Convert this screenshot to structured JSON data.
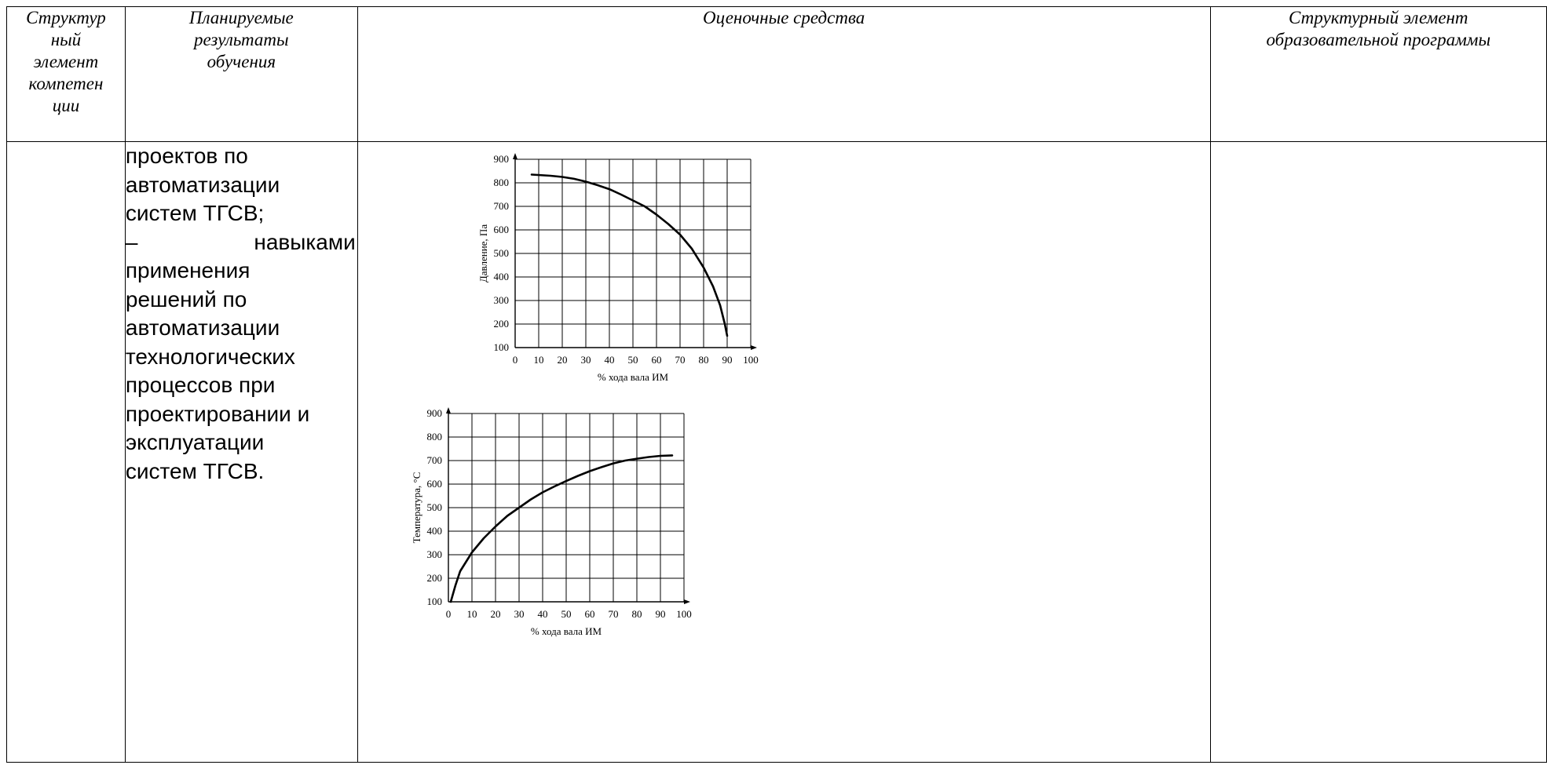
{
  "header": {
    "col1": [
      "Структур",
      "ный",
      "элемент",
      "компетен",
      "ции"
    ],
    "col2": [
      "Планируемые",
      "результаты",
      "обучения"
    ],
    "col3": "Оценочные средства",
    "col4": [
      "Структурный элемент",
      "образовательной программы"
    ]
  },
  "results_lines": [
    "проектов по",
    "автоматизации",
    "систем ТГСВ;",
    "–|навыками",
    "применения",
    "решений по",
    "автоматизации",
    "технологических",
    "процессов при",
    "проектировании и",
    "эксплуатации",
    "систем ТГСВ."
  ],
  "chart_data": [
    {
      "type": "line",
      "title": "",
      "xlabel": "% хода вала ИМ",
      "ylabel": "Давление, Па",
      "xlim": [
        0,
        100
      ],
      "ylim": [
        100,
        900
      ],
      "x_ticks": [
        "0",
        "10",
        "20",
        "30",
        "40",
        "50",
        "60",
        "70",
        "80",
        "90",
        "100"
      ],
      "y_ticks": [
        "100",
        "200",
        "300",
        "400",
        "500",
        "600",
        "700",
        "800",
        "900"
      ],
      "grid": true,
      "series": [
        {
          "x": [
            7,
            15,
            20,
            25,
            30,
            35,
            40,
            45,
            50,
            55,
            60,
            65,
            70,
            75,
            80,
            84,
            87,
            89,
            90
          ],
          "y": [
            835,
            830,
            825,
            817,
            805,
            790,
            773,
            750,
            725,
            700,
            665,
            625,
            580,
            520,
            440,
            360,
            280,
            200,
            150
          ]
        }
      ]
    },
    {
      "type": "line",
      "title": "",
      "xlabel": "% хода вала ИМ",
      "ylabel": "Температура, °C",
      "xlim": [
        0,
        100
      ],
      "ylim": [
        100,
        900
      ],
      "x_ticks": [
        "0",
        "10",
        "20",
        "30",
        "40",
        "50",
        "60",
        "70",
        "80",
        "90",
        "100"
      ],
      "y_ticks": [
        "100",
        "200",
        "300",
        "400",
        "500",
        "600",
        "700",
        "800",
        "900"
      ],
      "grid": true,
      "series": [
        {
          "x": [
            1,
            3,
            5,
            10,
            15,
            20,
            25,
            30,
            35,
            40,
            45,
            50,
            55,
            60,
            65,
            70,
            75,
            80,
            85,
            90,
            95
          ],
          "y": [
            100,
            170,
            230,
            310,
            370,
            420,
            465,
            500,
            535,
            565,
            590,
            613,
            635,
            655,
            672,
            688,
            700,
            708,
            715,
            720,
            722
          ]
        }
      ]
    }
  ]
}
